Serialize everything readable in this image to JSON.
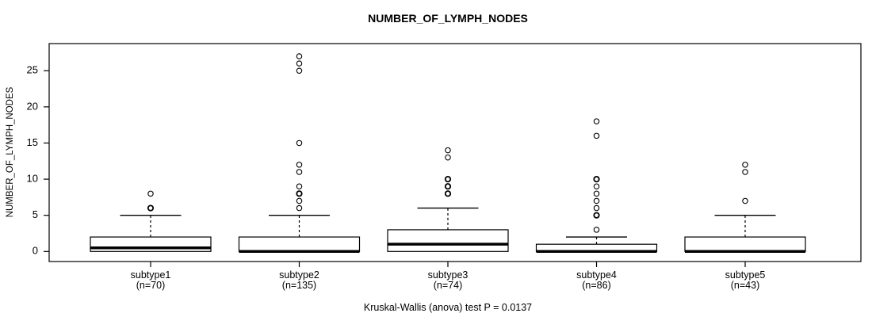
{
  "chart_data": {
    "type": "boxplot",
    "title": "NUMBER_OF_LYMPH_NODES",
    "ylabel": "NUMBER_OF_LYMPH_NODES",
    "xlabel": "",
    "annotation": "Kruskal-Wallis (anova) test P = 0.0137",
    "ylim": [
      0,
      28
    ],
    "yticks": [
      0,
      5,
      10,
      15,
      20,
      25
    ],
    "grid": false,
    "legend": "none",
    "whisker_style": "dashed",
    "colors": {
      "stroke": "#000000",
      "fill": "#ffffff",
      "background": "#ffffff"
    },
    "groups": [
      {
        "label": "subtype1",
        "n": 70,
        "n_label": "(n=70)",
        "q1": 0,
        "median": 0.5,
        "q3": 2,
        "whisker_low": 0,
        "whisker_high": 5,
        "outliers": [
          6,
          6,
          8
        ]
      },
      {
        "label": "subtype2",
        "n": 135,
        "n_label": "(n=135)",
        "q1": 0,
        "median": 0,
        "q3": 2,
        "whisker_low": 0,
        "whisker_high": 5,
        "outliers": [
          6,
          7,
          8,
          8,
          9,
          11,
          12,
          15,
          25,
          26,
          27
        ]
      },
      {
        "label": "subtype3",
        "n": 74,
        "n_label": "(n=74)",
        "q1": 0,
        "median": 1,
        "q3": 3,
        "whisker_low": 0,
        "whisker_high": 6,
        "outliers": [
          8,
          8,
          9,
          9,
          10,
          10,
          13,
          14
        ]
      },
      {
        "label": "subtype4",
        "n": 86,
        "n_label": "(n=86)",
        "q1": 0,
        "median": 0,
        "q3": 1,
        "whisker_low": 0,
        "whisker_high": 2,
        "outliers": [
          3,
          5,
          5,
          6,
          7,
          8,
          9,
          10,
          10,
          16,
          18
        ]
      },
      {
        "label": "subtype5",
        "n": 43,
        "n_label": "(n=43)",
        "q1": 0,
        "median": 0,
        "q3": 2,
        "whisker_low": 0,
        "whisker_high": 5,
        "outliers": [
          7,
          11,
          12
        ]
      }
    ]
  }
}
